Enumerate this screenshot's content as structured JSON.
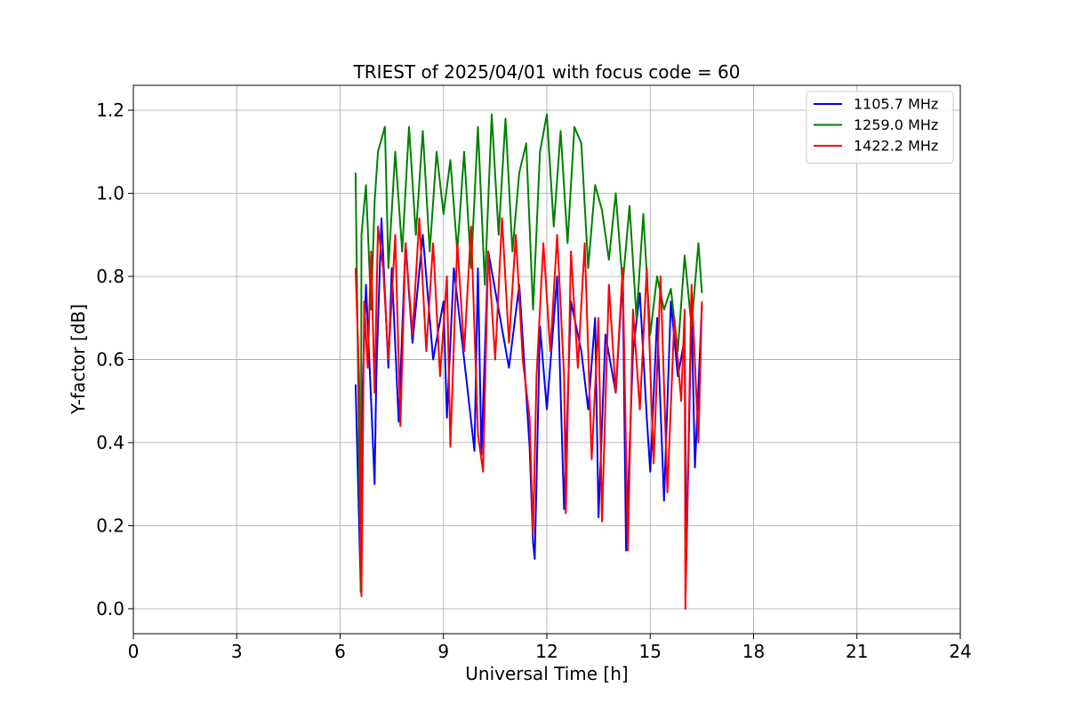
{
  "chart_data": {
    "type": "line",
    "title": "TRIEST of 2025/04/01 with focus code = 60",
    "xlabel": "Universal Time [h]",
    "ylabel": "Y-factor [dB]",
    "xlim": [
      0,
      24
    ],
    "ylim": [
      -0.06,
      1.26
    ],
    "xticks": [
      0,
      3,
      6,
      9,
      12,
      15,
      18,
      21,
      24
    ],
    "yticks": [
      0.0,
      0.2,
      0.4,
      0.6,
      0.8,
      1.0,
      1.2
    ],
    "xtick_labels": [
      "0",
      "3",
      "6",
      "9",
      "12",
      "15",
      "18",
      "21",
      "24"
    ],
    "ytick_labels": [
      "0.0",
      "0.2",
      "0.4",
      "0.6",
      "0.8",
      "1.0",
      "1.2"
    ],
    "grid": true,
    "legend_position": "top-right",
    "series": [
      {
        "name": "1105.7 MHz",
        "color": "#0000ff",
        "x": [
          6.45,
          6.6,
          6.62,
          6.75,
          6.9,
          7.0,
          7.05,
          7.2,
          7.4,
          7.5,
          7.7,
          7.9,
          8.1,
          8.4,
          8.7,
          9.0,
          9.1,
          9.3,
          9.6,
          9.9,
          10.0,
          10.1,
          10.3,
          10.6,
          10.9,
          11.2,
          11.5,
          11.6,
          11.65,
          11.8,
          12.0,
          12.3,
          12.5,
          12.7,
          13.0,
          13.2,
          13.4,
          13.5,
          13.7,
          14.0,
          14.2,
          14.3,
          14.5,
          14.7,
          14.9,
          15.0,
          15.2,
          15.4,
          15.6,
          15.8,
          16.0,
          16.05,
          16.2,
          16.3,
          16.5
        ],
        "y": [
          0.54,
          0.04,
          0.44,
          0.78,
          0.5,
          0.3,
          0.56,
          0.94,
          0.58,
          0.82,
          0.45,
          0.88,
          0.64,
          0.9,
          0.6,
          0.74,
          0.46,
          0.82,
          0.6,
          0.38,
          0.82,
          0.37,
          0.86,
          0.72,
          0.58,
          0.78,
          0.39,
          0.16,
          0.12,
          0.68,
          0.48,
          0.8,
          0.24,
          0.74,
          0.62,
          0.48,
          0.7,
          0.22,
          0.66,
          0.52,
          0.8,
          0.14,
          0.62,
          0.76,
          0.46,
          0.33,
          0.7,
          0.26,
          0.74,
          0.56,
          0.65,
          0.12,
          0.72,
          0.34,
          0.73
        ]
      },
      {
        "name": "1259.0 MHz",
        "color": "#008000",
        "x": [
          6.45,
          6.6,
          6.62,
          6.75,
          6.9,
          7.0,
          7.1,
          7.3,
          7.4,
          7.6,
          7.8,
          8.0,
          8.2,
          8.4,
          8.6,
          8.8,
          9.0,
          9.2,
          9.4,
          9.6,
          9.8,
          10.0,
          10.2,
          10.4,
          10.6,
          10.8,
          11.0,
          11.2,
          11.4,
          11.6,
          11.8,
          12.0,
          12.2,
          12.4,
          12.6,
          12.8,
          13.0,
          13.2,
          13.4,
          13.6,
          13.8,
          14.0,
          14.2,
          14.4,
          14.6,
          14.8,
          15.0,
          15.2,
          15.4,
          15.6,
          15.8,
          16.0,
          16.2,
          16.4,
          16.5
        ],
        "y": [
          1.05,
          0.04,
          0.9,
          1.02,
          0.72,
          0.98,
          1.1,
          1.16,
          0.82,
          1.1,
          0.86,
          1.16,
          0.9,
          1.15,
          0.86,
          1.1,
          0.95,
          1.08,
          0.86,
          1.1,
          0.82,
          1.16,
          0.78,
          1.19,
          0.9,
          1.18,
          0.86,
          1.05,
          1.12,
          0.72,
          1.1,
          1.19,
          0.92,
          1.15,
          0.88,
          1.16,
          1.12,
          0.82,
          1.02,
          0.96,
          0.84,
          1.0,
          0.78,
          0.97,
          0.7,
          0.95,
          0.66,
          0.8,
          0.72,
          0.77,
          0.62,
          0.85,
          0.68,
          0.88,
          0.76
        ]
      },
      {
        "name": "1422.2 MHz",
        "color": "#ff0000",
        "x": [
          6.45,
          6.55,
          6.6,
          6.62,
          6.7,
          6.8,
          6.9,
          7.0,
          7.1,
          7.25,
          7.4,
          7.6,
          7.75,
          7.9,
          8.1,
          8.3,
          8.5,
          8.7,
          8.9,
          9.1,
          9.2,
          9.4,
          9.6,
          9.8,
          10.0,
          10.15,
          10.3,
          10.5,
          10.7,
          10.9,
          11.1,
          11.3,
          11.5,
          11.6,
          11.7,
          11.9,
          12.1,
          12.3,
          12.5,
          12.55,
          12.7,
          12.9,
          13.1,
          13.3,
          13.5,
          13.6,
          13.8,
          14.0,
          14.2,
          14.35,
          14.5,
          14.7,
          14.9,
          15.1,
          15.3,
          15.5,
          15.7,
          15.9,
          16.0,
          16.02,
          16.2,
          16.4,
          16.5
        ],
        "y": [
          0.82,
          0.56,
          0.2,
          0.03,
          0.74,
          0.58,
          0.86,
          0.52,
          0.92,
          0.82,
          0.6,
          0.9,
          0.44,
          0.88,
          0.66,
          0.94,
          0.62,
          0.88,
          0.56,
          0.8,
          0.39,
          0.88,
          0.62,
          0.92,
          0.42,
          0.33,
          0.86,
          0.6,
          0.94,
          0.64,
          0.9,
          0.6,
          0.46,
          0.18,
          0.56,
          0.88,
          0.62,
          0.9,
          0.56,
          0.23,
          0.86,
          0.58,
          0.88,
          0.36,
          0.7,
          0.21,
          0.78,
          0.52,
          0.82,
          0.14,
          0.72,
          0.48,
          0.82,
          0.35,
          0.8,
          0.28,
          0.7,
          0.5,
          0.72,
          0.0,
          0.78,
          0.4,
          0.74
        ]
      }
    ]
  }
}
